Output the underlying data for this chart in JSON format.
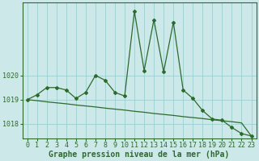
{
  "x": [
    0,
    1,
    2,
    3,
    4,
    5,
    6,
    7,
    8,
    9,
    10,
    11,
    12,
    13,
    14,
    15,
    16,
    17,
    18,
    19,
    20,
    21,
    22,
    23
  ],
  "line1": [
    1019.0,
    1019.2,
    1019.5,
    1019.5,
    1019.4,
    1019.05,
    1019.3,
    1020.0,
    1019.8,
    1019.3,
    1019.15,
    1022.65,
    1020.2,
    1022.3,
    1020.15,
    1022.2,
    1019.4,
    1019.05,
    1018.55,
    1018.2,
    1018.15,
    1017.85,
    1017.6,
    1017.5
  ],
  "line_straight": [
    1019.0,
    1018.96,
    1018.91,
    1018.87,
    1018.83,
    1018.78,
    1018.74,
    1018.7,
    1018.65,
    1018.61,
    1018.57,
    1018.52,
    1018.48,
    1018.43,
    1018.39,
    1018.35,
    1018.3,
    1018.26,
    1018.22,
    1018.17,
    1018.13,
    1018.09,
    1018.04,
    1017.5
  ],
  "line_color": "#2d6a2d",
  "bg_color": "#cde8e8",
  "grid_color": "#9ecece",
  "axis_color": "#2d6a2d",
  "xlabel": "Graphe pression niveau de la mer (hPa)",
  "ylim": [
    1017.4,
    1023.0
  ],
  "yticks": [
    1018,
    1019,
    1020
  ],
  "xticks": [
    0,
    1,
    2,
    3,
    4,
    5,
    6,
    7,
    8,
    9,
    10,
    11,
    12,
    13,
    14,
    15,
    16,
    17,
    18,
    19,
    20,
    21,
    22,
    23
  ],
  "xlabel_fontsize": 7.0,
  "tick_fontsize": 6.0
}
